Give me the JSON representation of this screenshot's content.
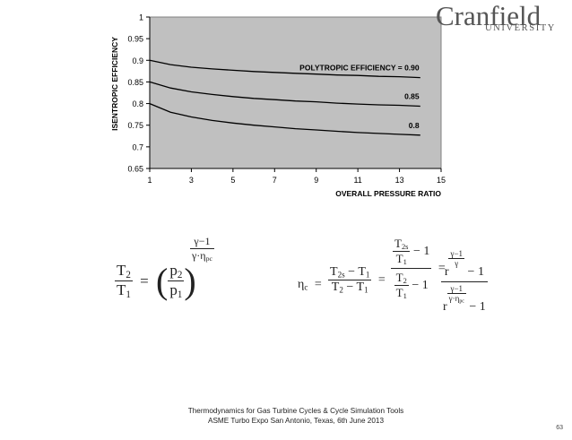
{
  "logo": {
    "main": "Cranfield",
    "sub": "UNIVERSITY"
  },
  "chart_data": {
    "type": "line",
    "x": [
      1,
      2,
      3,
      4,
      5,
      6,
      7,
      8,
      9,
      10,
      11,
      12,
      13,
      14
    ],
    "series": [
      {
        "name": "POLYTROPIC EFFICIENCY = 0.90",
        "values": [
          0.9,
          0.89,
          0.884,
          0.88,
          0.877,
          0.874,
          0.872,
          0.87,
          0.868,
          0.866,
          0.865,
          0.863,
          0.862,
          0.86
        ]
      },
      {
        "name": "0.85",
        "values": [
          0.85,
          0.836,
          0.827,
          0.821,
          0.816,
          0.812,
          0.809,
          0.806,
          0.804,
          0.801,
          0.799,
          0.797,
          0.796,
          0.794
        ]
      },
      {
        "name": "0.8",
        "values": [
          0.8,
          0.78,
          0.769,
          0.761,
          0.755,
          0.75,
          0.746,
          0.742,
          0.739,
          0.736,
          0.733,
          0.731,
          0.729,
          0.727
        ]
      }
    ],
    "title": "",
    "xlabel": "OVERALL PRESSURE RATIO",
    "ylabel": "ISENTROPIC EFFICIENCY",
    "xlim": [
      1,
      15
    ],
    "ylim": [
      0.65,
      1
    ],
    "xticks": [
      "1",
      "3",
      "5",
      "7",
      "9",
      "11",
      "13",
      "15"
    ],
    "yticks": [
      "0.65",
      "0.7",
      "0.75",
      "0.8",
      "0.85",
      "0.9",
      "0.95",
      "1"
    ],
    "grid": false,
    "plot_background": "#c0c0c0",
    "line_color": "#000000"
  },
  "equations": {
    "eq1": {
      "lhs_num": "T",
      "lhs_num_sub": "2",
      "lhs_den": "T",
      "lhs_den_sub": "1",
      "eq": "=",
      "paren_num": "p",
      "paren_num_sub": "2",
      "paren_den": "p",
      "paren_den_sub": "1",
      "exp_num": "γ−1",
      "exp_den": "γ·η",
      "exp_den_sub": "pc"
    },
    "eq2": {
      "eta": "η",
      "eta_sub": "c",
      "eq": "=",
      "f1_num_a": "T",
      "f1_num_a_sub": "2s",
      "f1_minus": "−",
      "f1_num_b": "T",
      "f1_num_b_sub": "1",
      "f1_den_a": "T",
      "f1_den_a_sub": "2",
      "f1_den_b": "T",
      "f1_den_b_sub": "1",
      "f2_num_top": "T",
      "f2_num_top_sub": "2s",
      "f2_num_bot": "T",
      "f2_num_bot_sub": "1",
      "f2_num_tail": "− 1",
      "f2_den_top": "T",
      "f2_den_top_sub": "2",
      "f2_den_bot": "T",
      "f2_den_bot_sub": "1",
      "f2_den_tail": "− 1",
      "f3_num_r": "r",
      "f3_num_exp_top": "γ−1",
      "f3_num_exp_bot": "γ",
      "f3_num_tail": "− 1",
      "f3_den_r": "r",
      "f3_den_exp_top": "γ−1",
      "f3_den_exp_bot": "γ·η",
      "f3_den_exp_bot_sub": "pc",
      "f3_den_tail": "− 1"
    }
  },
  "footer": {
    "line1": "Thermodynamics for Gas Turbine Cycles & Cycle Simulation Tools",
    "line2": "ASME Turbo Expo San Antonio, Texas, 6th June 2013"
  },
  "page_number": "63"
}
